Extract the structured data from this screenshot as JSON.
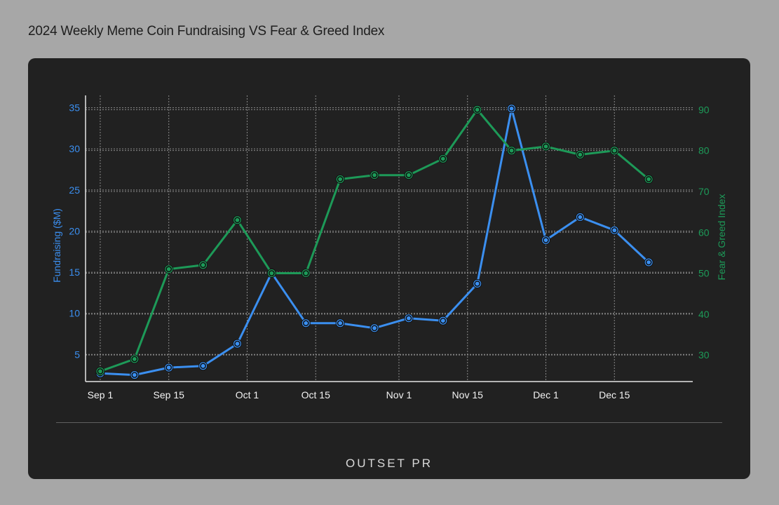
{
  "page_title": "2024 Weekly Meme Coin Fundraising VS Fear & Greed Index",
  "logo_text": "OUTSET PR",
  "chart_data": {
    "type": "line",
    "title": "2024 Weekly Meme Coin Fundraising VS Fear & Greed Index",
    "x_tick_labels": [
      "Sep 1",
      "Sep 15",
      "Oct 1",
      "Oct 15",
      "Nov 1",
      "Nov 15",
      "Dec 1",
      "Dec 15"
    ],
    "x_tick_dates": [
      "2024-09-01",
      "2024-09-15",
      "2024-10-01",
      "2024-10-15",
      "2024-11-01",
      "2024-11-15",
      "2024-12-01",
      "2024-12-15"
    ],
    "x": [
      "2024-09-01",
      "2024-09-08",
      "2024-09-15",
      "2024-09-22",
      "2024-09-29",
      "2024-10-06",
      "2024-10-13",
      "2024-10-20",
      "2024-10-27",
      "2024-11-03",
      "2024-11-10",
      "2024-11-17",
      "2024-11-24",
      "2024-12-01",
      "2024-12-08",
      "2024-12-15",
      "2024-12-22"
    ],
    "xlim": [
      "2024-08-29",
      "2024-12-31"
    ],
    "y_left": {
      "label": "Fundraising ($M)",
      "range": [
        1.7,
        36.5
      ],
      "ticks": [
        5,
        10,
        15,
        20,
        25,
        30,
        35
      ],
      "color": "#3b8ff0"
    },
    "y_right": {
      "label": "Fear & Greed Index",
      "range": [
        23.5,
        93.5
      ],
      "ticks": [
        30,
        40,
        50,
        60,
        70,
        80,
        90
      ],
      "color": "#1d9a58"
    },
    "series": [
      {
        "name": "Fundraising ($M)",
        "axis": "left",
        "color": "#3b8ff0",
        "values": [
          2.7,
          2.5,
          3.4,
          3.6,
          6.3,
          14.9,
          8.8,
          8.8,
          8.2,
          9.4,
          9.1,
          13.6,
          34.9,
          18.9,
          21.7,
          20.1,
          16.2
        ]
      },
      {
        "name": "Fear & Greed Index",
        "axis": "right",
        "color": "#1d9a58",
        "values": [
          26,
          29,
          51,
          52,
          63,
          50,
          50,
          73,
          74,
          74,
          78,
          90,
          80,
          81,
          79,
          80,
          73
        ]
      }
    ],
    "grid": true
  }
}
